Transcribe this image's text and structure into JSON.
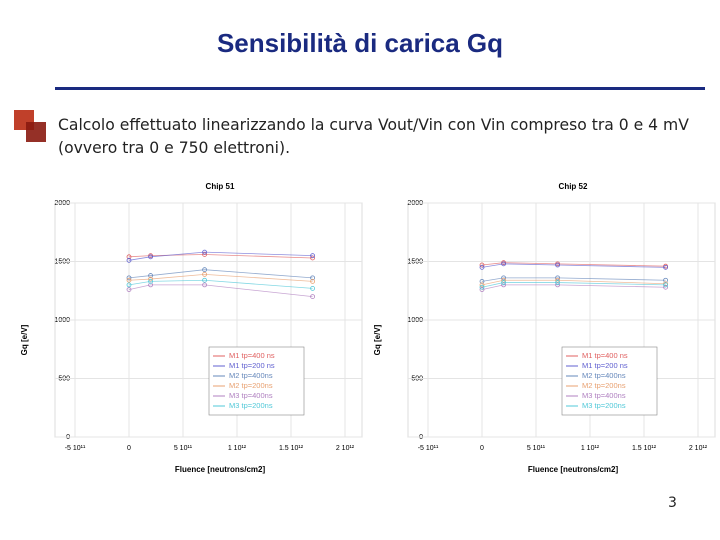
{
  "slide": {
    "title": "Sensibilità di carica Gq",
    "bullet": "Calcolo effettuato linearizzando la curva Vout/Vin con Vin compreso tra 0 e 4 mV (ovvero tra 0 e 750 elettroni).",
    "page_number": "3"
  },
  "chart_data": [
    {
      "type": "line",
      "title": "Chip 51",
      "x_label": "Fluence [neutrons/cm2]",
      "y_label": "Gq [e/V]",
      "x": [
        0,
        200000000000,
        700000000000,
        1700000000000
      ],
      "xlim": [
        -500000000000,
        2000000000000
      ],
      "xticks": [
        {
          "value": -500000000000,
          "label": "-5 10¹¹"
        },
        0,
        {
          "value": 500000000000,
          "label": "5 10¹¹"
        },
        {
          "value": 1000000000000,
          "label": "1 10¹²"
        },
        {
          "value": 1500000000000,
          "label": "1.5 10¹²"
        },
        {
          "value": 2000000000000,
          "label": "2 10¹²"
        }
      ],
      "ylim": [
        0,
        2000
      ],
      "yticks": [
        0,
        500,
        1000,
        1500,
        2000
      ],
      "grid": true,
      "legend": "lower right",
      "series": [
        {
          "name": "M1 tp=400 ns",
          "color": "#e06060",
          "values": [
            1540,
            1550,
            1560,
            1530
          ]
        },
        {
          "name": "M1 tp=200 ns",
          "color": "#6060d0",
          "values": [
            1510,
            1540,
            1580,
            1550
          ]
        },
        {
          "name": "M2 tp=400ns",
          "color": "#6688bb",
          "values": [
            1360,
            1380,
            1430,
            1360
          ]
        },
        {
          "name": "M2 tp=200ns",
          "color": "#e8a070",
          "values": [
            1340,
            1350,
            1390,
            1330
          ]
        },
        {
          "name": "M3 tp=400ns",
          "color": "#b080c0",
          "values": [
            1260,
            1300,
            1300,
            1200
          ]
        },
        {
          "name": "M3 tp=200ns",
          "color": "#50c8d8",
          "values": [
            1300,
            1330,
            1340,
            1270
          ]
        }
      ]
    },
    {
      "type": "line",
      "title": "Chip 52",
      "x_label": "Fluence [neutrons/cm2]",
      "y_label": "Gq [e/V]",
      "x": [
        0,
        200000000000,
        700000000000,
        1700000000000
      ],
      "xlim": [
        -500000000000,
        2000000000000
      ],
      "xticks": [
        {
          "value": -500000000000,
          "label": "-5 10¹¹"
        },
        0,
        {
          "value": 500000000000,
          "label": "5 10¹¹"
        },
        {
          "value": 1000000000000,
          "label": "1 10¹²"
        },
        {
          "value": 1500000000000,
          "label": "1.5 10¹²"
        },
        {
          "value": 2000000000000,
          "label": "2 10¹²"
        }
      ],
      "ylim": [
        0,
        2000
      ],
      "yticks": [
        0,
        500,
        1000,
        1500,
        2000
      ],
      "grid": true,
      "legend": "lower right",
      "series": [
        {
          "name": "M1 tp=400 ns",
          "color": "#e06060",
          "values": [
            1470,
            1490,
            1480,
            1460
          ]
        },
        {
          "name": "M1 tp=200 ns",
          "color": "#6060d0",
          "values": [
            1450,
            1480,
            1470,
            1450
          ]
        },
        {
          "name": "M2 tp=400ns",
          "color": "#6688bb",
          "values": [
            1330,
            1360,
            1360,
            1340
          ]
        },
        {
          "name": "M2 tp=200ns",
          "color": "#e8a070",
          "values": [
            1300,
            1340,
            1340,
            1310
          ]
        },
        {
          "name": "M3 tp=400ns",
          "color": "#b080c0",
          "values": [
            1260,
            1300,
            1300,
            1280
          ]
        },
        {
          "name": "M3 tp=200ns",
          "color": "#50c8d8",
          "values": [
            1280,
            1320,
            1320,
            1300
          ]
        }
      ]
    }
  ]
}
